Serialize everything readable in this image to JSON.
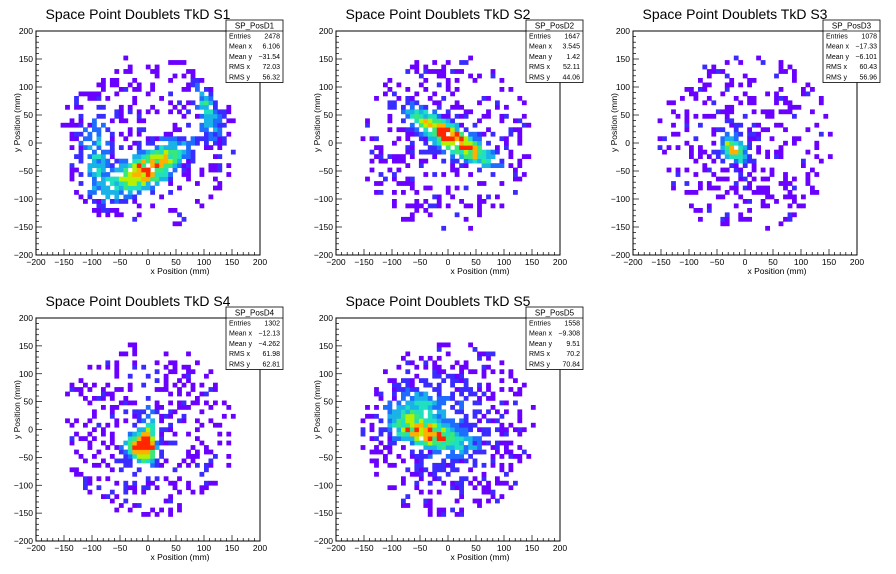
{
  "chart_data": [
    {
      "type": "heatmap",
      "title": "Space Point Doublets TkD S1",
      "xlabel": "x Position (mm)",
      "ylabel": "y Position (mm)",
      "xlim": [
        -200,
        200
      ],
      "ylim": [
        -200,
        200
      ],
      "x_ticks": [
        "−200",
        "−150",
        "−100",
        "−50",
        "0",
        "50",
        "100",
        "150",
        "200"
      ],
      "y_ticks": [
        "−200",
        "−150",
        "−100",
        "−50",
        "0",
        "50",
        "100",
        "150",
        "200"
      ],
      "stats": {
        "name": "SP_PosD1",
        "rows": [
          {
            "label": "Entries",
            "value": "2478"
          },
          {
            "label": "Mean x",
            "value": "6.106"
          },
          {
            "label": "Mean y",
            "value": "−31.54"
          },
          {
            "label": "RMS x",
            "value": "72.03"
          },
          {
            "label": "RMS y",
            "value": "56.32"
          }
        ]
      },
      "hotspots": [
        {
          "x": 0,
          "y": -45,
          "sx": 55,
          "sy": 22,
          "angle": 30,
          "w": 1.0
        },
        {
          "x": 105,
          "y": 60,
          "sx": 14,
          "sy": 38,
          "angle": 20,
          "w": 0.55
        },
        {
          "x": -95,
          "y": -15,
          "sx": 22,
          "sy": 55,
          "angle": 0,
          "w": 0.45
        }
      ]
    },
    {
      "type": "heatmap",
      "title": "Space Point Doublets TkD S2",
      "xlabel": "x Position (mm)",
      "ylabel": "y Position (mm)",
      "xlim": [
        -200,
        200
      ],
      "ylim": [
        -200,
        200
      ],
      "x_ticks": [
        "−200",
        "−150",
        "−100",
        "−50",
        "0",
        "50",
        "100",
        "150",
        "200"
      ],
      "y_ticks": [
        "−200",
        "−150",
        "−100",
        "−50",
        "0",
        "50",
        "100",
        "150",
        "200"
      ],
      "stats": {
        "name": "SP_PosD2",
        "rows": [
          {
            "label": "Entries",
            "value": "1647"
          },
          {
            "label": "Mean x",
            "value": "3.545"
          },
          {
            "label": "Mean y",
            "value": "1.42"
          },
          {
            "label": "RMS x",
            "value": "52.11"
          },
          {
            "label": "RMS y",
            "value": "44.06"
          }
        ]
      },
      "hotspots": [
        {
          "x": 5,
          "y": 10,
          "sx": 60,
          "sy": 14,
          "angle": -32,
          "w": 1.0
        },
        {
          "x": 0,
          "y": 0,
          "sx": 70,
          "sy": 70,
          "angle": 0,
          "w": 0.15
        }
      ]
    },
    {
      "type": "heatmap",
      "title": "Space Point Doublets TkD S3",
      "xlabel": "x Position (mm)",
      "ylabel": "y Position (mm)",
      "xlim": [
        -200,
        200
      ],
      "ylim": [
        -200,
        200
      ],
      "x_ticks": [
        "−200",
        "−150",
        "−100",
        "−50",
        "0",
        "50",
        "100",
        "150",
        "200"
      ],
      "y_ticks": [
        "−200",
        "−150",
        "−100",
        "−50",
        "0",
        "50",
        "100",
        "150",
        "200"
      ],
      "stats": {
        "name": "SP_PosD3",
        "rows": [
          {
            "label": "Entries",
            "value": "1078"
          },
          {
            "label": "Mean x",
            "value": "−17.33"
          },
          {
            "label": "Mean y",
            "value": "−6.101"
          },
          {
            "label": "RMS x",
            "value": "60.43"
          },
          {
            "label": "RMS y",
            "value": "56.96"
          }
        ]
      },
      "hotspots": [
        {
          "x": -20,
          "y": -10,
          "sx": 12,
          "sy": 18,
          "angle": 30,
          "w": 0.8
        },
        {
          "x": -40,
          "y": 0,
          "sx": 80,
          "sy": 80,
          "angle": 0,
          "w": 0.12
        }
      ]
    },
    {
      "type": "heatmap",
      "title": "Space Point Doublets TkD S4",
      "xlabel": "x Position (mm)",
      "ylabel": "y Position (mm)",
      "xlim": [
        -200,
        200
      ],
      "ylim": [
        -200,
        200
      ],
      "x_ticks": [
        "−200",
        "−150",
        "−100",
        "−50",
        "0",
        "50",
        "100",
        "150",
        "200"
      ],
      "y_ticks": [
        "−200",
        "−150",
        "−100",
        "−50",
        "0",
        "50",
        "100",
        "150",
        "200"
      ],
      "stats": {
        "name": "SP_PosD4",
        "rows": [
          {
            "label": "Entries",
            "value": "1302"
          },
          {
            "label": "Mean x",
            "value": "−12.13"
          },
          {
            "label": "Mean y",
            "value": "−4.262"
          },
          {
            "label": "RMS x",
            "value": "61.98"
          },
          {
            "label": "RMS y",
            "value": "62.81"
          }
        ]
      },
      "hotspots": [
        {
          "x": -15,
          "y": -30,
          "sx": 16,
          "sy": 16,
          "angle": 0,
          "w": 1.0
        },
        {
          "x": 0,
          "y": -20,
          "sx": 8,
          "sy": 35,
          "angle": 0,
          "w": 0.6
        },
        {
          "x": -5,
          "y": 0,
          "sx": 90,
          "sy": 90,
          "angle": 0,
          "w": 0.12
        }
      ]
    },
    {
      "type": "heatmap",
      "title": "Space Point Doublets TkD S5",
      "xlabel": "x Position (mm)",
      "ylabel": "y Position (mm)",
      "xlim": [
        -200,
        200
      ],
      "ylim": [
        -200,
        200
      ],
      "x_ticks": [
        "−200",
        "−150",
        "−100",
        "−50",
        "0",
        "50",
        "100",
        "150",
        "200"
      ],
      "y_ticks": [
        "−200",
        "−150",
        "−100",
        "−50",
        "0",
        "50",
        "100",
        "150",
        "200"
      ],
      "stats": {
        "name": "SP_PosD5",
        "rows": [
          {
            "label": "Entries",
            "value": "1558"
          },
          {
            "label": "Mean x",
            "value": "−9.308"
          },
          {
            "label": "Mean y",
            "value": "9.51"
          },
          {
            "label": "RMS x",
            "value": "70.2"
          },
          {
            "label": "RMS y",
            "value": "70.84"
          }
        ]
      },
      "hotspots": [
        {
          "x": -30,
          "y": -10,
          "sx": 45,
          "sy": 14,
          "angle": -15,
          "w": 0.7
        },
        {
          "x": -60,
          "y": 30,
          "sx": 30,
          "sy": 25,
          "angle": 0,
          "w": 0.4
        },
        {
          "x": -10,
          "y": 5,
          "sx": 85,
          "sy": 85,
          "angle": 0,
          "w": 0.25
        }
      ]
    }
  ],
  "palette": [
    "#6a00ff",
    "#3a2bff",
    "#1f6dff",
    "#19b3e8",
    "#1fe0c0",
    "#39e87a",
    "#b7f000",
    "#ffb000",
    "#ff2600"
  ]
}
